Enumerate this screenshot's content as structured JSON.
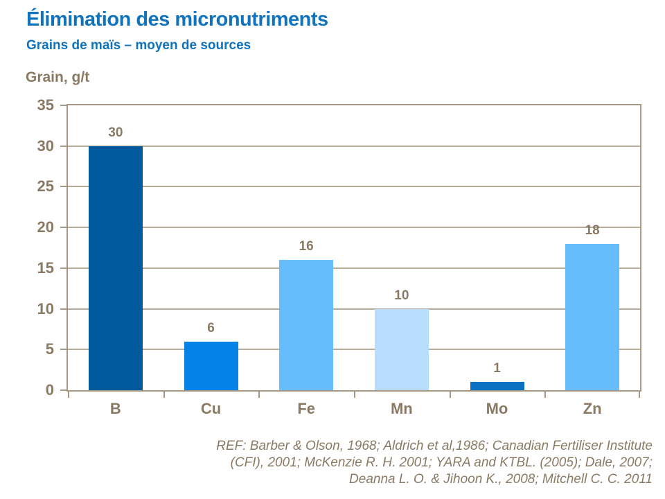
{
  "slide": {
    "title": "Élimination des micronutriments",
    "subtitle": "Grains de maïs – moyen de sources",
    "reference_lines": [
      "REF: Barber & Olson, 1968; Aldrich et al,1986; Canadian Fertiliser Institute",
      "(CFI),  2001; McKenzie R. H. 2001; YARA and KTBL. (2005); Dale, 2007;",
      "Deanna L. O. & Jihoon K.,  2008; Mitchell C. C. 2011"
    ]
  },
  "chart_data": {
    "type": "bar",
    "title": "Élimination des micronutriments",
    "subtitle": "Grains de maïs – moyen de sources",
    "ylabel": "Grain, g/t",
    "xlabel": "",
    "categories": [
      "B",
      "Cu",
      "Fe",
      "Mn",
      "Mo",
      "Zn"
    ],
    "values": [
      30,
      6,
      16,
      10,
      1,
      18
    ],
    "bar_colors": [
      "#005A9C",
      "#0482E5",
      "#67BCFB",
      "#B8DDFC",
      "#0B72C2",
      "#67BCFB"
    ],
    "ylim": [
      0,
      35
    ],
    "ytick_step": 5,
    "yticks": [
      0,
      5,
      10,
      15,
      20,
      25,
      30,
      35
    ],
    "grid": true,
    "legend": false,
    "data_labels": true
  },
  "colors": {
    "title": "#1173BC",
    "axis_text": "#8A7A64",
    "plot_border": "#A69885",
    "gridline": "#B5A99A",
    "background": "#FFFFFF"
  }
}
